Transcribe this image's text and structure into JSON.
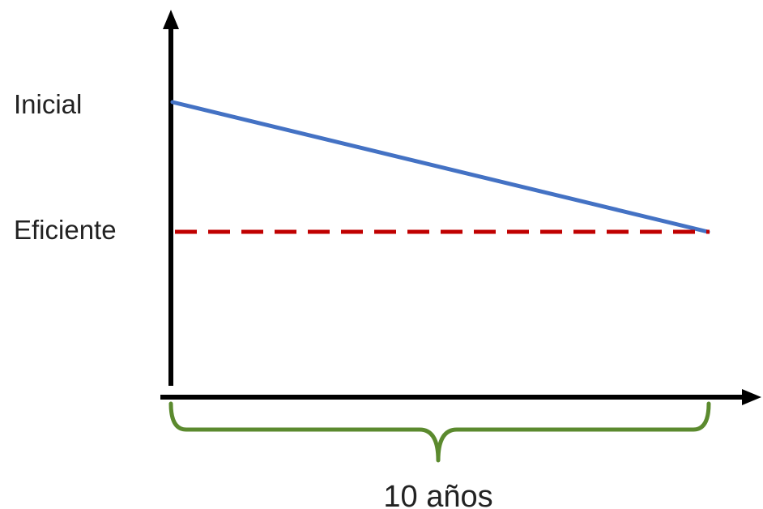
{
  "y_labels": {
    "initial": "Inicial",
    "efficient": "Eficiente"
  },
  "span_label": "10 años",
  "colors": {
    "axis": "#000000",
    "trend_line": "#4472C4",
    "efficient_line": "#C00000",
    "brace": "#5B8A2E",
    "text": "#222222"
  }
}
